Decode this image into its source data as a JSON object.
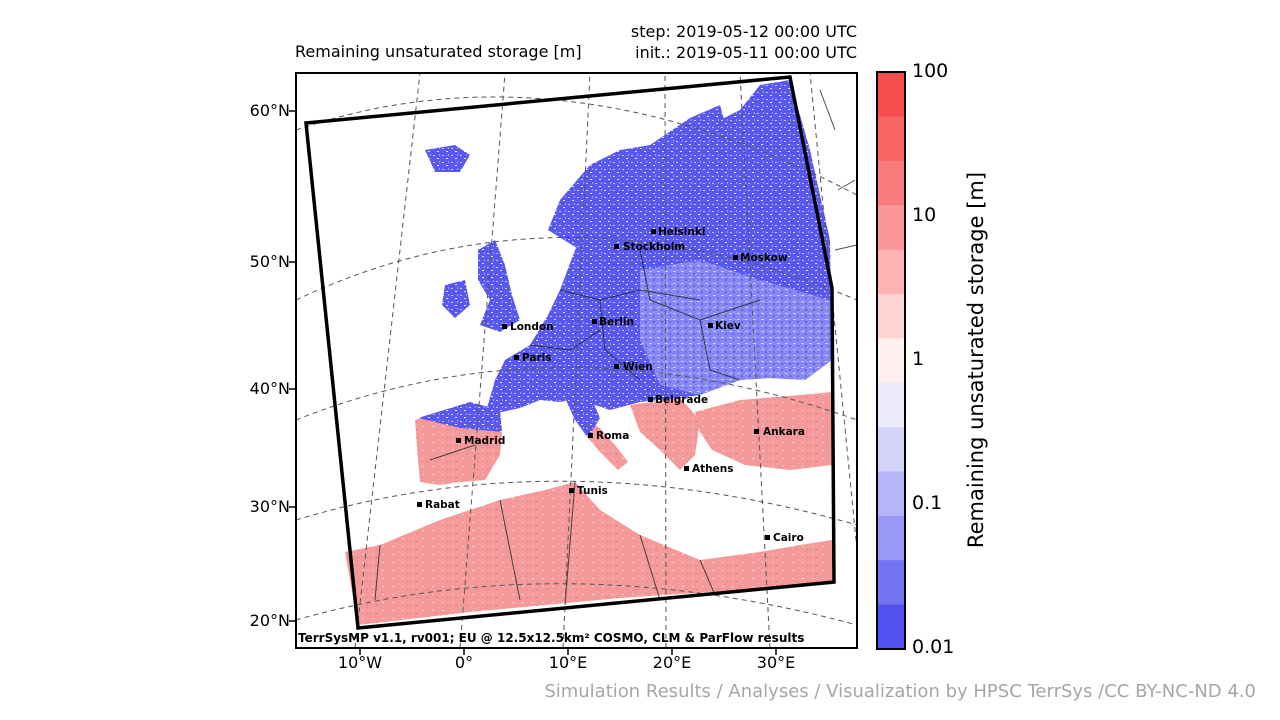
{
  "map": {
    "title": "Remaining unsaturated storage [m]",
    "step": "step: 2019-05-12 00:00 UTC",
    "init": "init.: 2019-05-11 00:00 UTC",
    "footer": "TerrSysMP v1.1, rv001; EU @ 12.5x12.5km² COSMO, CLM & ParFlow results",
    "lat_labels": [
      "60°N",
      "50°N",
      "40°N",
      "30°N",
      "20°N"
    ],
    "lon_labels": [
      "10°W",
      "0°",
      "10°E",
      "20°E",
      "30°E"
    ],
    "cities": [
      {
        "name": "Helsinki"
      },
      {
        "name": "Stockholm"
      },
      {
        "name": "Moskow"
      },
      {
        "name": "London"
      },
      {
        "name": "Berlin"
      },
      {
        "name": "Kiev"
      },
      {
        "name": "Paris"
      },
      {
        "name": "Wien"
      },
      {
        "name": "Belgrade"
      },
      {
        "name": "Madrid"
      },
      {
        "name": "Roma"
      },
      {
        "name": "Ankara"
      },
      {
        "name": "Athens"
      },
      {
        "name": "Tunis"
      },
      {
        "name": "Rabat"
      },
      {
        "name": "Cairo"
      }
    ],
    "colors": {
      "low": "#4b4bf0",
      "mid": "#f0f0ff",
      "high": "#f05050",
      "land_south": "#f4a0a0",
      "frame": "#000000"
    }
  },
  "colorbar": {
    "label": "Remaining unsaturated storage [m]",
    "ticks": [
      "100",
      "10",
      "1",
      "0.1",
      "0.01"
    ],
    "scale": "log",
    "range": [
      0.01,
      100
    ],
    "colors": [
      "#f54d4d",
      "#f86565",
      "#fa7b7b",
      "#fc9595",
      "#fdb3b3",
      "#fed3d3",
      "#fff0f0",
      "#ebebfd",
      "#d4d4fb",
      "#b6b6f8",
      "#9999f5",
      "#7474f2",
      "#5252ef"
    ]
  },
  "credit": "Simulation Results / Analyses / Visualization by HPSC TerrSys /CC BY-NC-ND 4.0"
}
